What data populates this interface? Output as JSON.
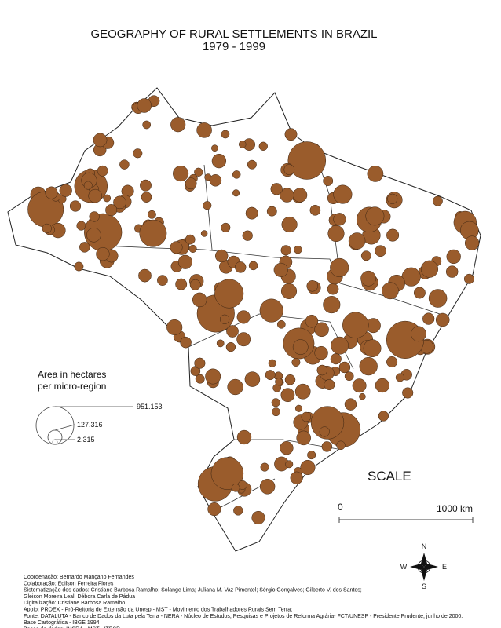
{
  "header": {
    "title": "GEOGRAPHY OF RURAL SETTLEMENTS IN BRAZIL",
    "subtitle": "1979 - 1999"
  },
  "legend": {
    "title_lines": [
      "Area in hectares",
      "per micro-region"
    ],
    "values": [
      "951.153",
      "127.316",
      "2.315"
    ]
  },
  "scale": {
    "title": "SCALE",
    "start": "0",
    "end": "1000 km"
  },
  "compass": {
    "north": "N",
    "south": "S",
    "east": "E",
    "west": "W"
  },
  "credits": [
    "Coordenação: Bernardo Mançano Fernandes",
    "Colaboração: Edilson Ferreira Flores",
    "Sistematização dos dados: Cristiane Barbosa Ramalho; Solange Lima; Juliana M. Vaz Pimentel; Sérgio Gonçalves; Gilberto V. dos Santos;",
    "Gleison Moreira Leal; Débora Carla de Pádua",
    "Digitalização: Cristiane Barbosa Ramalho",
    "Apoio: PROEX - Pró-Reitoria de Extensão da Unesp - MST - Movimento dos Trabalhadores Rurais Sem Terra;",
    "Fonte: DATALUTA - Banco de Dados da Luta pela Terra - NERA - Núcleo de Estudos, Pesquisas e Projetos de Reforma Agrária- FCT/UNESP - Presidente Prudente, junho de 2000.",
    "Base Cartográfica - IBGE 1994",
    "Bases de dados: INCRA - MST - ITESP."
  ]
}
